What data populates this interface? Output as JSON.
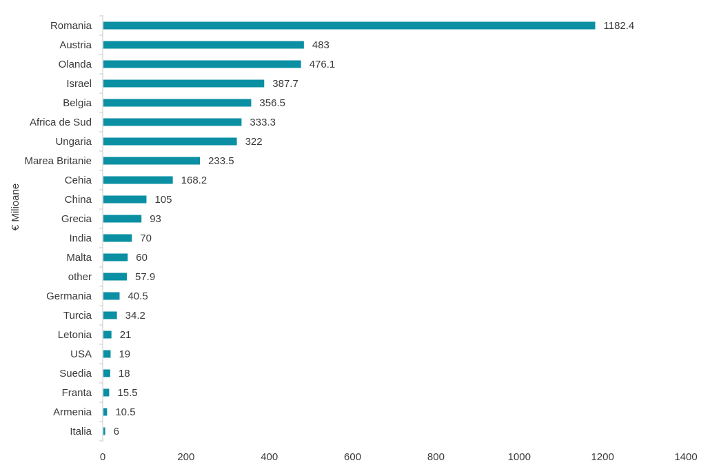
{
  "chart_data": {
    "type": "bar",
    "orientation": "horizontal",
    "title": "",
    "xlabel": "",
    "ylabel": "€ Milioane",
    "xlim": [
      0,
      1400
    ],
    "xticks": [
      0,
      200,
      400,
      600,
      800,
      1000,
      1200,
      1400
    ],
    "grid": false,
    "bar_color": "#0a8fa3",
    "categories": [
      "Romania",
      "Austria",
      "Olanda",
      "Israel",
      "Belgia",
      "Africa de Sud",
      "Ungaria",
      "Marea Britanie",
      "Cehia",
      "China",
      "Grecia",
      "India",
      "Malta",
      "other",
      "Germania",
      "Turcia",
      "Letonia",
      "USA",
      "Suedia",
      "Franta",
      "Armenia",
      "Italia"
    ],
    "values": [
      1182.4,
      483,
      476.1,
      387.7,
      356.5,
      333.3,
      322,
      233.5,
      168.2,
      105,
      93,
      70,
      60,
      57.9,
      40.5,
      34.2,
      21,
      19,
      18,
      15.5,
      10.5,
      6
    ],
    "value_labels": [
      "1182.4",
      "483",
      "476.1",
      "387.7",
      "356.5",
      "333.3",
      "322",
      "233.5",
      "168.2",
      "105",
      "93",
      "70",
      "60",
      "57.9",
      "40.5",
      "34.2",
      "21",
      "19",
      "18",
      "15.5",
      "10.5",
      "6"
    ]
  }
}
